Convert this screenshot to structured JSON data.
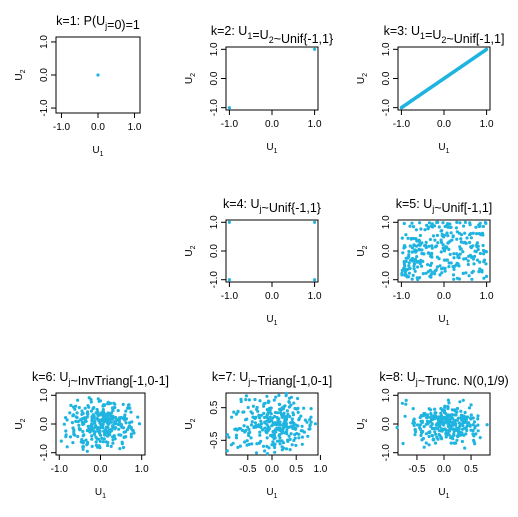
{
  "colors": {
    "point": "#1fb4e0",
    "axis": "#000000",
    "background": "#ffffff"
  },
  "chart_data": [
    {
      "id": "k1",
      "type": "scatter",
      "title": "k=1: P(U_j=0)=1",
      "xlabel": "U_1",
      "ylabel": "U_2",
      "xlim": [
        -1.15,
        1.15
      ],
      "ylim": [
        -1.15,
        1.15
      ],
      "xticks": [
        -1,
        0,
        1
      ],
      "xtick_labels": [
        "-1.0",
        "0.0",
        "1.0"
      ],
      "yticks": [
        -1,
        0,
        1
      ],
      "ytick_labels": [
        "-1.0",
        "0.0",
        "1.0"
      ],
      "points": {
        "x": [
          0
        ],
        "y": [
          0
        ]
      }
    },
    {
      "id": "k2",
      "type": "scatter",
      "title": "k=2: U_1=U_2~Unif{-1,1}",
      "xlabel": "U_1",
      "ylabel": "U_2",
      "xlim": [
        -1.08,
        1.08
      ],
      "ylim": [
        -1.08,
        1.08
      ],
      "xticks": [
        -1,
        0,
        1
      ],
      "xtick_labels": [
        "-1.0",
        "0.0",
        "1.0"
      ],
      "yticks": [
        -1,
        0,
        1
      ],
      "ytick_labels": [
        "-1.0",
        "0.0",
        "1.0"
      ],
      "points": {
        "x": [
          -1,
          1
        ],
        "y": [
          -1,
          1
        ]
      }
    },
    {
      "id": "k3",
      "type": "scatter",
      "title": "k=3: U_1=U_2~Unif[-1,1]",
      "xlabel": "U_1",
      "ylabel": "U_2",
      "xlim": [
        -1.08,
        1.08
      ],
      "ylim": [
        -1.08,
        1.08
      ],
      "xticks": [
        -1,
        0,
        1
      ],
      "xtick_labels": [
        "-1.0",
        "0.0",
        "1.0"
      ],
      "yticks": [
        -1,
        0,
        1
      ],
      "ytick_labels": [
        "-1.0",
        "0.0",
        "1.0"
      ],
      "points": {
        "generator": "diagonal",
        "n": 300,
        "range": [
          -1,
          1
        ]
      }
    },
    {
      "id": "k4",
      "type": "scatter",
      "title": "k=4: U_j~Unif{-1,1}",
      "xlabel": "U_1",
      "ylabel": "U_2",
      "xlim": [
        -1.08,
        1.08
      ],
      "ylim": [
        -1.08,
        1.08
      ],
      "xticks": [
        -1,
        0,
        1
      ],
      "xtick_labels": [
        "-1.0",
        "0.0",
        "1.0"
      ],
      "yticks": [
        -1,
        0,
        1
      ],
      "ytick_labels": [
        "-1.0",
        "0.0",
        "1.0"
      ],
      "points": {
        "x": [
          -1,
          1,
          -1,
          1
        ],
        "y": [
          1,
          1,
          -1,
          -1
        ]
      }
    },
    {
      "id": "k5",
      "type": "scatter",
      "title": "k=5: U_j~Unif[-1,1]",
      "xlabel": "U_1",
      "ylabel": "U_2",
      "xlim": [
        -1.08,
        1.08
      ],
      "ylim": [
        -1.08,
        1.08
      ],
      "xticks": [
        -1,
        0,
        1
      ],
      "xtick_labels": [
        "-1.0",
        "0.0",
        "1.0"
      ],
      "yticks": [
        -1,
        0,
        1
      ],
      "ytick_labels": [
        "-1.0",
        "0.0",
        "1.0"
      ],
      "points": {
        "generator": "uniform",
        "n": 300,
        "range": [
          -1,
          1
        ]
      }
    },
    {
      "id": "k6",
      "type": "scatter",
      "title": "k=6: U_j~InvTriang[-1,0-1]",
      "xlabel": "U_1",
      "ylabel": "U_2",
      "xlim": [
        -1.08,
        1.08
      ],
      "ylim": [
        -1.08,
        1.08
      ],
      "xticks": [
        -1,
        0,
        1
      ],
      "xtick_labels": [
        "-1.0",
        "0.0",
        "1.0"
      ],
      "yticks": [
        -1,
        0,
        1
      ],
      "ytick_labels": [
        "-1.0",
        "0.0",
        "1.0"
      ],
      "points": {
        "generator": "inverse_triangular",
        "n": 300,
        "range": [
          -1,
          1
        ]
      }
    },
    {
      "id": "k7",
      "type": "scatter",
      "title": "k=7: U_j~Triang[-1,0-1]",
      "xlabel": "U_1",
      "ylabel": "U_2",
      "xlim": [
        -0.95,
        0.95
      ],
      "ylim": [
        -0.95,
        0.95
      ],
      "xticks": [
        -0.5,
        0,
        0.5,
        1
      ],
      "xtick_labels": [
        "-0.5",
        "0.0",
        "0.5",
        "1.0"
      ],
      "yticks": [
        -0.5,
        0.5
      ],
      "ytick_labels": [
        "-0.5",
        "0.5"
      ],
      "points": {
        "generator": "triangular",
        "n": 300,
        "range": [
          -1,
          1
        ]
      }
    },
    {
      "id": "k8",
      "type": "scatter",
      "title": "k=8: U_j~Trunc. N(0,1/9)",
      "xlabel": "U_1",
      "ylabel": "U_2",
      "xlim": [
        -0.85,
        0.85
      ],
      "ylim": [
        -1.08,
        1.08
      ],
      "xticks": [
        -0.5,
        0,
        0.5
      ],
      "xtick_labels": [
        "-0.5",
        "0.0",
        "0.5"
      ],
      "yticks": [
        -1,
        0,
        1
      ],
      "ytick_labels": [
        "-1.0",
        "0.0",
        "1.0"
      ],
      "points": {
        "generator": "truncated_normal",
        "n": 300,
        "mean": 0,
        "variance": 0.1111,
        "range": [
          -1,
          1
        ]
      }
    }
  ]
}
